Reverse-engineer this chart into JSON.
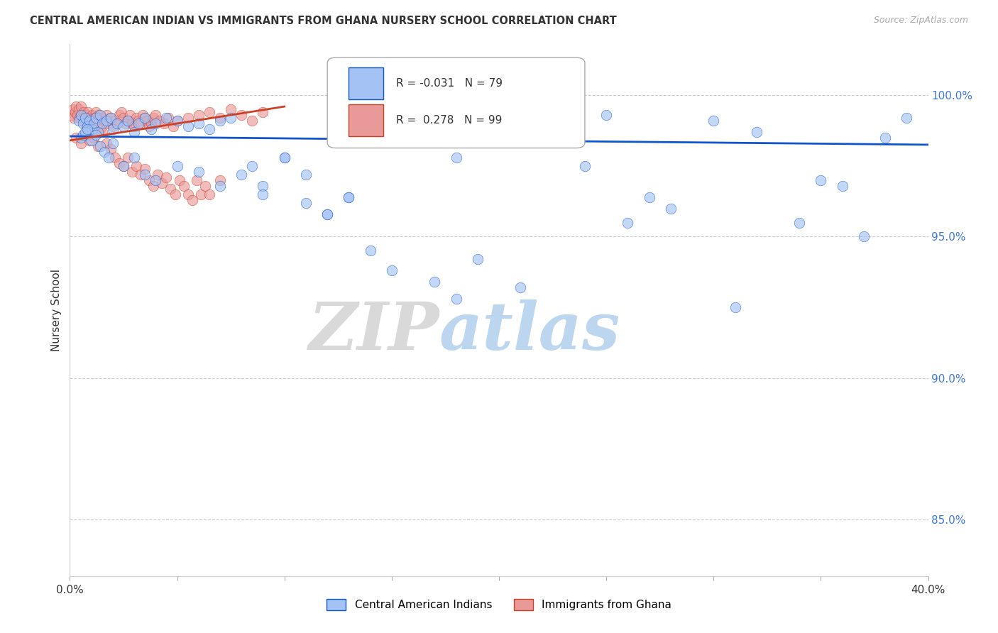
{
  "title": "CENTRAL AMERICAN INDIAN VS IMMIGRANTS FROM GHANA NURSERY SCHOOL CORRELATION CHART",
  "source": "Source: ZipAtlas.com",
  "ylabel": "Nursery School",
  "yticks": [
    85.0,
    90.0,
    95.0,
    100.0
  ],
  "ytick_labels": [
    "85.0%",
    "90.0%",
    "95.0%",
    "100.0%"
  ],
  "xmin": 0.0,
  "xmax": 40.0,
  "ymin": 83.0,
  "ymax": 101.8,
  "legend_label_blue": "Central American Indians",
  "legend_label_pink": "Immigrants from Ghana",
  "blue_color": "#a4c2f4",
  "pink_color": "#ea9999",
  "trendline_blue_color": "#1155cc",
  "trendline_pink_color": "#cc4125",
  "blue_trendline_x0": 0.0,
  "blue_trendline_y0": 98.55,
  "blue_trendline_x1": 40.0,
  "blue_trendline_y1": 98.25,
  "pink_trendline_x0": 0.0,
  "pink_trendline_y0": 98.4,
  "pink_trendline_x1": 10.0,
  "pink_trendline_y1": 99.6,
  "watermark_zip": "ZIP",
  "watermark_atlas": "atlas",
  "blue_scatter_x": [
    0.4,
    0.5,
    0.6,
    0.7,
    0.8,
    0.9,
    1.0,
    1.1,
    1.2,
    1.3,
    1.4,
    1.5,
    1.7,
    1.9,
    2.0,
    2.2,
    2.5,
    2.7,
    3.0,
    3.2,
    3.5,
    3.8,
    4.0,
    4.5,
    5.0,
    5.5,
    6.0,
    6.5,
    7.0,
    7.5,
    8.5,
    9.0,
    10.0,
    11.0,
    12.0,
    13.0,
    14.0,
    16.0,
    17.0,
    18.0,
    19.0,
    20.0,
    22.0,
    24.0,
    25.0,
    26.0,
    28.0,
    30.0,
    32.0,
    34.0,
    35.0,
    36.0,
    37.0,
    38.0,
    39.0,
    0.5,
    0.6,
    0.7,
    0.8,
    1.0,
    1.2,
    1.4,
    1.6,
    1.8,
    2.0,
    2.5,
    3.0,
    3.5,
    4.0,
    5.0,
    6.0,
    7.0,
    8.0,
    9.0,
    10.0,
    11.0,
    12.0,
    13.0,
    15.0,
    18.0,
    21.0,
    27.0,
    31.0
  ],
  "blue_scatter_y": [
    99.1,
    99.3,
    99.0,
    99.2,
    98.9,
    99.1,
    98.8,
    99.0,
    99.2,
    98.7,
    99.3,
    99.0,
    99.1,
    99.2,
    98.8,
    99.0,
    98.9,
    99.1,
    98.7,
    99.0,
    99.2,
    98.8,
    99.0,
    99.2,
    99.1,
    98.9,
    99.0,
    98.8,
    99.1,
    99.2,
    97.5,
    96.8,
    97.8,
    97.2,
    95.8,
    96.4,
    94.5,
    99.2,
    93.4,
    97.8,
    94.2,
    98.8,
    98.4,
    97.5,
    99.3,
    95.5,
    96.0,
    99.1,
    98.7,
    95.5,
    97.0,
    96.8,
    95.0,
    98.5,
    99.2,
    98.5,
    98.6,
    98.7,
    98.8,
    98.4,
    98.6,
    98.2,
    98.0,
    97.8,
    98.3,
    97.5,
    97.8,
    97.2,
    97.0,
    97.5,
    97.3,
    96.8,
    97.2,
    96.5,
    97.8,
    96.2,
    95.8,
    96.4,
    93.8,
    92.8,
    93.2,
    96.4,
    92.5
  ],
  "pink_scatter_x": [
    0.1,
    0.15,
    0.2,
    0.25,
    0.3,
    0.35,
    0.4,
    0.45,
    0.5,
    0.55,
    0.6,
    0.65,
    0.7,
    0.75,
    0.8,
    0.85,
    0.9,
    0.95,
    1.0,
    1.05,
    1.1,
    1.15,
    1.2,
    1.25,
    1.3,
    1.35,
    1.4,
    1.5,
    1.6,
    1.7,
    1.8,
    1.9,
    2.0,
    2.1,
    2.2,
    2.3,
    2.4,
    2.5,
    2.6,
    2.7,
    2.8,
    2.9,
    3.0,
    3.1,
    3.2,
    3.3,
    3.4,
    3.5,
    3.6,
    3.7,
    3.8,
    3.9,
    4.0,
    4.2,
    4.4,
    4.6,
    4.8,
    5.0,
    5.5,
    6.0,
    6.5,
    7.0,
    7.5,
    8.0,
    8.5,
    9.0,
    0.3,
    0.5,
    0.7,
    0.9,
    1.1,
    1.3,
    1.5,
    1.7,
    1.9,
    2.1,
    2.3,
    2.5,
    2.7,
    2.9,
    3.1,
    3.3,
    3.5,
    3.7,
    3.9,
    4.1,
    4.3,
    4.5,
    4.7,
    4.9,
    5.1,
    5.3,
    5.5,
    5.7,
    5.9,
    6.1,
    6.3,
    6.5,
    7.0
  ],
  "pink_scatter_y": [
    99.3,
    99.5,
    99.2,
    99.4,
    99.6,
    99.3,
    99.5,
    99.2,
    99.6,
    99.3,
    99.1,
    99.4,
    99.0,
    99.3,
    99.2,
    99.4,
    99.0,
    99.2,
    99.1,
    99.3,
    98.9,
    99.2,
    99.4,
    99.1,
    99.0,
    99.3,
    98.8,
    99.2,
    99.1,
    99.3,
    99.0,
    99.2,
    98.9,
    99.1,
    99.0,
    99.3,
    99.4,
    99.2,
    99.0,
    99.1,
    99.3,
    99.0,
    98.9,
    99.2,
    99.1,
    99.0,
    99.3,
    99.2,
    99.1,
    98.9,
    99.0,
    99.2,
    99.3,
    99.1,
    99.0,
    99.2,
    98.9,
    99.1,
    99.2,
    99.3,
    99.4,
    99.2,
    99.5,
    99.3,
    99.1,
    99.4,
    98.5,
    98.3,
    98.6,
    98.4,
    98.5,
    98.2,
    98.7,
    98.3,
    98.1,
    97.8,
    97.6,
    97.5,
    97.8,
    97.3,
    97.5,
    97.2,
    97.4,
    97.0,
    96.8,
    97.2,
    96.9,
    97.1,
    96.7,
    96.5,
    97.0,
    96.8,
    96.5,
    96.3,
    97.0,
    96.5,
    96.8,
    96.5,
    97.0
  ]
}
